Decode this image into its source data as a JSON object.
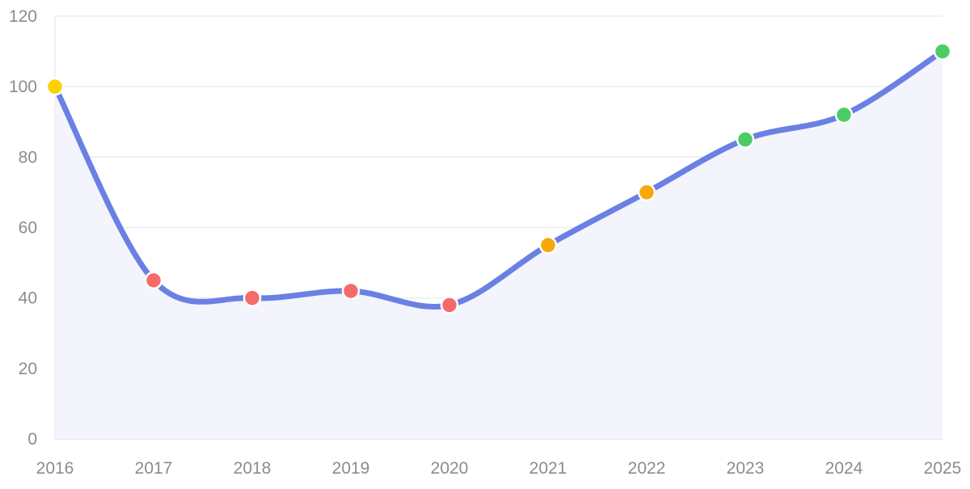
{
  "chart_data": {
    "type": "line",
    "title": "",
    "xlabel": "",
    "ylabel": "",
    "categories": [
      "2016",
      "2017",
      "2018",
      "2019",
      "2020",
      "2021",
      "2022",
      "2023",
      "2024",
      "2025"
    ],
    "series": [
      {
        "values": [
          100,
          45,
          40,
          42,
          38,
          55,
          70,
          85,
          92,
          110
        ],
        "line_color": "#6b80e3",
        "fill_color": "#f3f4fc",
        "point_colors": [
          "#fcd000",
          "#f56b6b",
          "#f56b6b",
          "#f56b6b",
          "#f56b6b",
          "#f9a70a",
          "#f9a70a",
          "#4ccd63",
          "#4ccd63",
          "#4ccd63"
        ]
      }
    ],
    "ylim": [
      0,
      120
    ],
    "yticks": [
      0,
      20,
      40,
      60,
      80,
      100,
      120
    ],
    "grid": true,
    "legend": "none"
  },
  "colors": {
    "grid": "#ececf3",
    "axis": "#d9d9e2",
    "tick_text": "#8c8c8c",
    "point_border": "#ffffff"
  }
}
